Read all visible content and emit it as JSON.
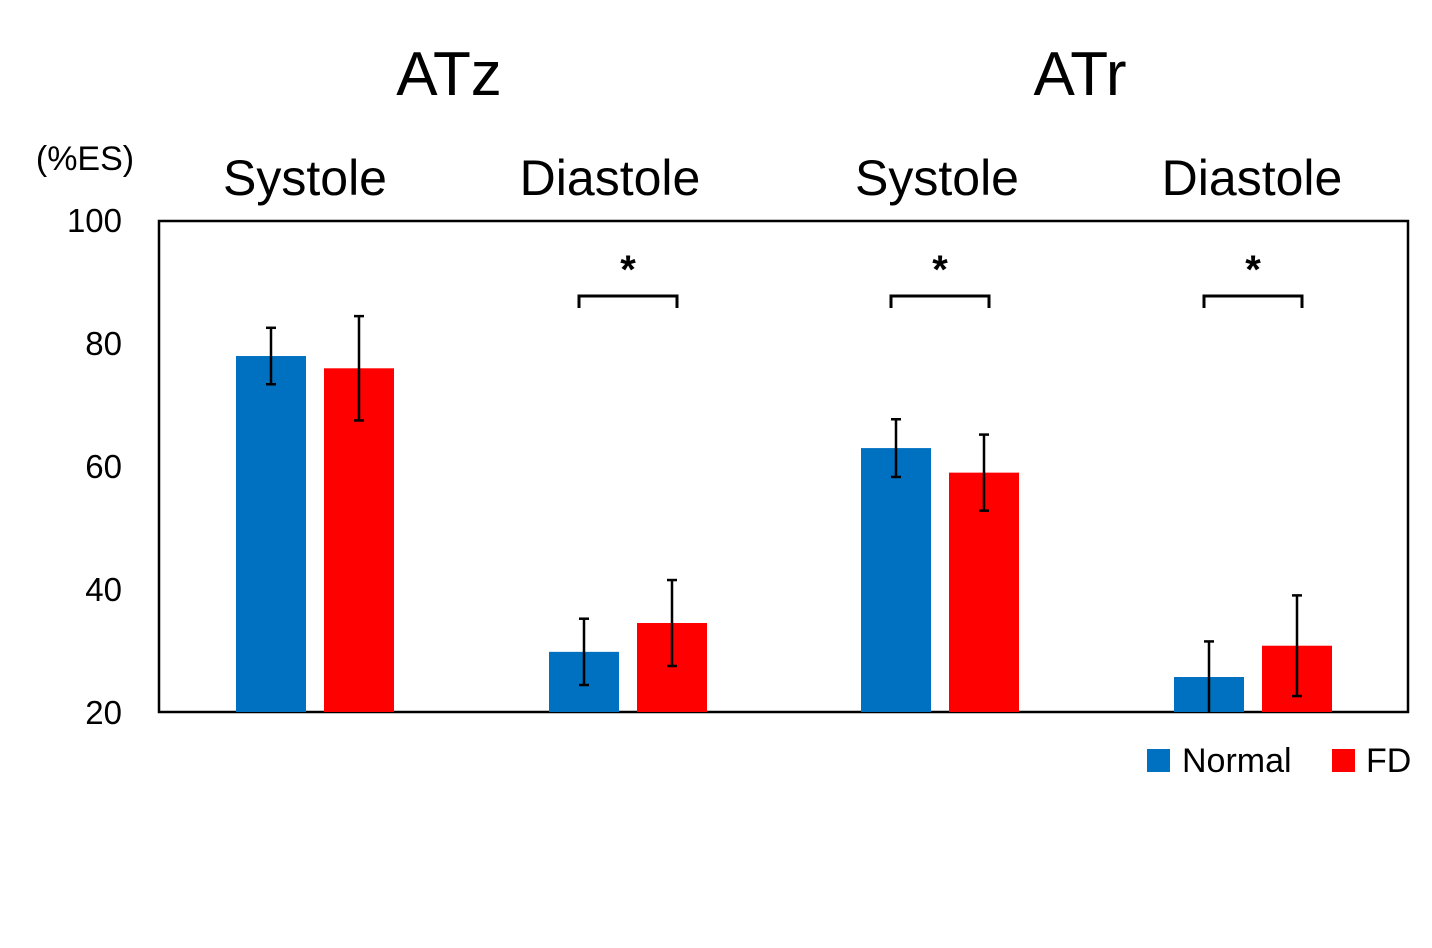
{
  "chart_data": {
    "type": "bar",
    "title": "",
    "ylabel": "(%ES)",
    "xlabel": "",
    "ylim": [
      20,
      100
    ],
    "yticks": [
      "100",
      "80",
      "60",
      "40",
      "20"
    ],
    "grid": false,
    "legend_position": "bottom-right",
    "groups": [
      {
        "title": "ATz",
        "phases": [
          "Systole",
          "Diastole"
        ]
      },
      {
        "title": "ATr",
        "phases": [
          "Systole",
          "Diastole"
        ]
      }
    ],
    "categories": [
      "Systole",
      "Diastole",
      "Systole",
      "Diastole"
    ],
    "series": [
      {
        "name": "Normal",
        "color": "#0070C0",
        "values": [
          78,
          29.8,
          63,
          25.7
        ],
        "errors": [
          4.6,
          5.4,
          4.7,
          5.8
        ]
      },
      {
        "name": "FD",
        "color": "#FF0000",
        "values": [
          76,
          34.5,
          59,
          30.8
        ],
        "errors": [
          8.5,
          7.0,
          6.2,
          8.2
        ]
      }
    ],
    "significance": [
      {
        "category_index": 1,
        "label": "*"
      },
      {
        "category_index": 2,
        "label": "*"
      },
      {
        "category_index": 3,
        "label": "*"
      }
    ]
  }
}
